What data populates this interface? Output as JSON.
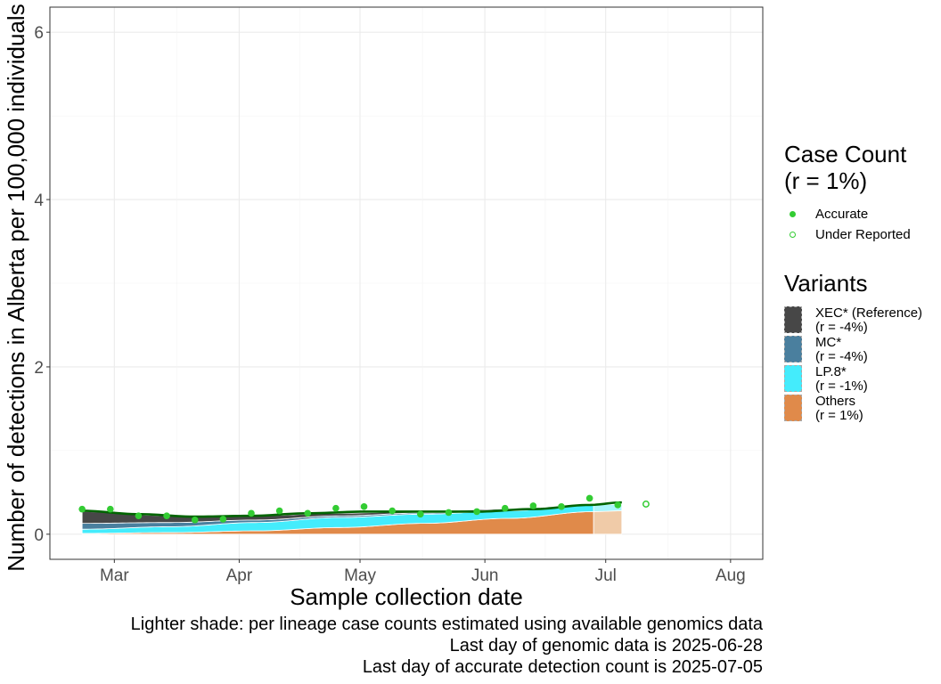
{
  "chart_data": {
    "type": "area",
    "title": "",
    "xlabel": "Sample collection date",
    "ylabel": "Number of detections in Alberta per 100,000 individuals",
    "x_range": [
      "2025-02-13",
      "2025-08-09"
    ],
    "y_range": [
      -0.3,
      6.3
    ],
    "y_ticks": [
      0,
      2,
      4,
      6
    ],
    "y_tick_labels": [
      "0",
      "2",
      "4",
      "6"
    ],
    "x_ticks": [
      "2025-03-01",
      "2025-04-01",
      "2025-05-01",
      "2025-06-01",
      "2025-07-01",
      "2025-08-01"
    ],
    "x_tick_labels": [
      "Mar",
      "Apr",
      "May",
      "Jun",
      "Jul",
      "Aug"
    ],
    "grid": true,
    "genomic_last_day": "2025-06-28",
    "stack_end_day": "2025-07-05",
    "area_series": [
      {
        "name": "Others",
        "rate": "(r = 1%)",
        "color": "#e08a4a",
        "light_color": "#f0cba8",
        "x": [
          "2025-02-21",
          "2025-03-15",
          "2025-04-05",
          "2025-04-26",
          "2025-05-17",
          "2025-06-07",
          "2025-06-28",
          "2025-07-05"
        ],
        "values": [
          0.01,
          0.02,
          0.04,
          0.08,
          0.13,
          0.19,
          0.27,
          0.28
        ]
      },
      {
        "name": "LP.8*",
        "rate": "(r = -1%)",
        "color": "#44ecfc",
        "light_color": "#a9f5fc",
        "x": [
          "2025-02-21",
          "2025-03-15",
          "2025-04-05",
          "2025-04-26",
          "2025-05-17",
          "2025-06-07",
          "2025-06-28",
          "2025-07-05"
        ],
        "values": [
          0.05,
          0.07,
          0.1,
          0.12,
          0.11,
          0.09,
          0.08,
          0.08
        ]
      },
      {
        "name": "MC*",
        "rate": "(r = -4%)",
        "color": "#4a7f9e",
        "light_color": "#a4bfcf",
        "x": [
          "2025-02-21",
          "2025-03-15",
          "2025-04-05",
          "2025-04-26",
          "2025-05-17",
          "2025-06-07",
          "2025-06-28",
          "2025-07-05"
        ],
        "values": [
          0.07,
          0.05,
          0.03,
          0.02,
          0.015,
          0.01,
          0.005,
          0.004
        ]
      },
      {
        "name": "XEC* (Reference)",
        "rate": "(r = -4%)",
        "color": "#474747",
        "light_color": "#a3a3a3",
        "x": [
          "2025-02-21",
          "2025-03-15",
          "2025-04-05",
          "2025-04-26",
          "2025-05-17",
          "2025-06-07",
          "2025-06-28",
          "2025-07-05"
        ],
        "values": [
          0.14,
          0.08,
          0.05,
          0.03,
          0.02,
          0.012,
          0.006,
          0.005
        ]
      }
    ],
    "trend_line": {
      "color": "#006400",
      "x": [
        "2025-02-21",
        "2025-03-07",
        "2025-03-21",
        "2025-04-04",
        "2025-04-18",
        "2025-05-02",
        "2025-05-16",
        "2025-05-30",
        "2025-06-13",
        "2025-06-27",
        "2025-07-05"
      ],
      "values": [
        0.28,
        0.24,
        0.21,
        0.22,
        0.25,
        0.27,
        0.27,
        0.27,
        0.3,
        0.35,
        0.38
      ]
    },
    "points_accurate": {
      "name": "Accurate",
      "color": "#33cc33",
      "x": [
        "2025-02-21",
        "2025-02-28",
        "2025-03-07",
        "2025-03-14",
        "2025-03-21",
        "2025-03-28",
        "2025-04-04",
        "2025-04-11",
        "2025-04-18",
        "2025-04-25",
        "2025-05-02",
        "2025-05-09",
        "2025-05-16",
        "2025-05-23",
        "2025-05-30",
        "2025-06-06",
        "2025-06-13",
        "2025-06-20",
        "2025-06-27",
        "2025-07-04"
      ],
      "values": [
        0.3,
        0.3,
        0.22,
        0.22,
        0.17,
        0.18,
        0.25,
        0.28,
        0.25,
        0.31,
        0.33,
        0.28,
        0.24,
        0.26,
        0.27,
        0.31,
        0.34,
        0.33,
        0.43,
        0.35
      ]
    },
    "points_under_reported": {
      "name": "Under Reported",
      "color": "#33cc33",
      "x": [
        "2025-07-11"
      ],
      "values": [
        0.36
      ]
    },
    "legend_case_title": "Case Count\n(r = 1%)",
    "legend_variants_title": "Variants",
    "legend_order": [
      "XEC* (Reference)",
      "MC*",
      "LP.8*",
      "Others"
    ]
  },
  "captions": {
    "line1": "Lighter shade: per lineage case counts estimated using available genomics data",
    "line2": "Last day of genomic data is 2025-06-28",
    "line3": "Last day of accurate detection count is 2025-07-05"
  },
  "legend": {
    "case_title_line1": "Case Count",
    "case_title_line2": "(r = 1%)",
    "accurate_label": "Accurate",
    "under_label": "Under Reported",
    "variants_title": "Variants",
    "variants": [
      {
        "name": "XEC* (Reference)",
        "rate": "(r = -4%)",
        "color": "#474747"
      },
      {
        "name": "MC*",
        "rate": "(r = -4%)",
        "color": "#4a7f9e"
      },
      {
        "name": "LP.8*",
        "rate": "(r = -1%)",
        "color": "#44ecfc"
      },
      {
        "name": "Others",
        "rate": "(r = 1%)",
        "color": "#e08a4a"
      }
    ]
  }
}
